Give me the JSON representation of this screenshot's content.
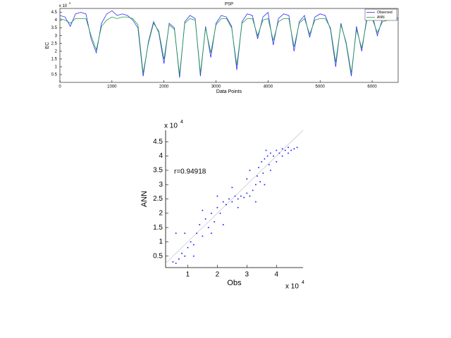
{
  "chart_data": [
    {
      "type": "line",
      "title": "PSP",
      "x_label": "Data Points",
      "y_label": "EC",
      "y_multiplier": "x 10",
      "y_exponent": "4",
      "x": [
        0,
        100,
        200,
        300,
        400,
        500,
        600,
        700,
        800,
        900,
        1000,
        1100,
        1200,
        1300,
        1400,
        1500,
        1600,
        1700,
        1800,
        1900,
        2000,
        2100,
        2200,
        2300,
        2400,
        2500,
        2600,
        2700,
        2800,
        2900,
        3000,
        3100,
        3200,
        3300,
        3400,
        3500,
        3600,
        3700,
        3800,
        3900,
        4000,
        4100,
        4200,
        4300,
        4400,
        4500,
        4600,
        4700,
        4800,
        4900,
        5000,
        5100,
        5200,
        5300,
        5400,
        5500,
        5600,
        5700,
        5800,
        5900,
        6000,
        6100,
        6200,
        6300,
        6400,
        6500
      ],
      "series": [
        {
          "name": "Observed",
          "color": "#2b2bff",
          "values": [
            4.3,
            4.2,
            3.6,
            4.4,
            4.5,
            4.4,
            2.8,
            1.9,
            3.8,
            4.4,
            4.6,
            4.3,
            4.4,
            4.3,
            4.0,
            3.5,
            0.4,
            2.6,
            3.9,
            3.2,
            1.2,
            3.8,
            3.5,
            0.3,
            3.9,
            4.3,
            4.1,
            0.4,
            3.6,
            1.6,
            3.8,
            4.3,
            4.2,
            3.6,
            0.8,
            3.9,
            4.4,
            4.3,
            2.8,
            4.2,
            4.5,
            2.4,
            4.1,
            4.4,
            4.3,
            2.0,
            3.9,
            4.3,
            2.9,
            4.2,
            4.4,
            4.3,
            3.4,
            1.0,
            3.8,
            2.5,
            0.4,
            3.6,
            2.0,
            4.2,
            4.4,
            3.0,
            4.1,
            4.2,
            4.3,
            4.1
          ]
        },
        {
          "name": "ANN",
          "color": "#1f9e3a",
          "values": [
            4.1,
            4.0,
            3.8,
            4.1,
            4.1,
            4.1,
            3.0,
            2.1,
            3.6,
            4.0,
            4.2,
            4.1,
            4.2,
            4.2,
            4.1,
            3.7,
            0.6,
            2.5,
            3.8,
            3.3,
            1.5,
            3.7,
            3.4,
            0.5,
            3.8,
            4.1,
            4.0,
            0.6,
            3.5,
            1.9,
            3.7,
            4.1,
            4.1,
            3.5,
            1.1,
            3.8,
            4.1,
            4.1,
            3.0,
            4.0,
            4.1,
            2.7,
            3.9,
            4.1,
            4.1,
            2.3,
            3.8,
            4.1,
            3.1,
            4.0,
            4.1,
            4.1,
            3.5,
            1.3,
            3.7,
            2.6,
            0.6,
            3.4,
            2.2,
            4.0,
            4.1,
            3.2,
            3.9,
            4.0,
            4.1,
            4.0
          ]
        }
      ],
      "xlim": [
        0,
        6500
      ],
      "xticks": [
        0,
        1000,
        2000,
        3000,
        4000,
        5000,
        6000
      ],
      "ylim": [
        0,
        4.75
      ],
      "yticks": [
        0.5,
        1,
        1.5,
        2,
        2.5,
        3,
        3.5,
        4,
        4.5
      ],
      "legend": "upper right",
      "grid": false
    },
    {
      "type": "scatter",
      "x_label": "Obs",
      "y_label": "ANN",
      "annotation": "r=0.94918",
      "x_multiplier": "x 10",
      "x_exponent": "4",
      "y_multiplier": "x 10",
      "y_exponent": "4",
      "color": "#2b2bff",
      "fit_color": "#bbbbbb",
      "x": [
        0.5,
        0.6,
        0.7,
        0.8,
        0.9,
        1.0,
        1.1,
        1.2,
        1.3,
        1.4,
        1.5,
        1.6,
        1.7,
        1.8,
        1.9,
        2.0,
        2.1,
        2.2,
        2.3,
        2.4,
        2.5,
        2.6,
        2.7,
        2.8,
        2.9,
        3.0,
        3.1,
        3.2,
        3.3,
        3.35,
        3.4,
        3.45,
        3.5,
        3.55,
        3.6,
        3.7,
        3.75,
        3.8,
        3.9,
        4.0,
        4.1,
        4.2,
        4.3,
        4.4,
        4.5,
        4.6,
        4.7,
        2.2,
        1.5,
        2.7,
        3.0,
        3.6,
        4.0,
        1.2,
        0.9,
        2.0,
        3.3,
        3.8,
        4.2,
        2.5,
        1.8,
        3.1,
        0.6,
        4.4,
        3.65
      ],
      "y": [
        0.3,
        0.25,
        0.4,
        0.6,
        0.5,
        0.8,
        1.0,
        0.9,
        1.3,
        1.6,
        1.2,
        1.8,
        1.5,
        2.0,
        1.7,
        2.2,
        2.0,
        2.4,
        2.3,
        2.5,
        2.4,
        2.6,
        2.5,
        2.6,
        2.55,
        2.7,
        2.6,
        2.8,
        3.0,
        3.3,
        3.6,
        3.1,
        3.8,
        3.4,
        3.9,
        4.0,
        3.7,
        4.1,
        4.0,
        4.2,
        4.1,
        4.25,
        4.2,
        4.3,
        4.2,
        4.25,
        4.3,
        1.6,
        2.1,
        2.2,
        3.2,
        3.0,
        3.8,
        0.5,
        1.3,
        2.6,
        2.4,
        3.5,
        4.0,
        2.9,
        1.3,
        3.5,
        1.3,
        4.1,
        4.2
      ],
      "xlim": [
        0.25,
        4.9
      ],
      "xticks": [
        1,
        2,
        3,
        4
      ],
      "ylim": [
        0.1,
        4.9
      ],
      "yticks": [
        0.5,
        1,
        1.5,
        2,
        2.5,
        3,
        3.5,
        4,
        4.5
      ],
      "grid": false
    }
  ]
}
